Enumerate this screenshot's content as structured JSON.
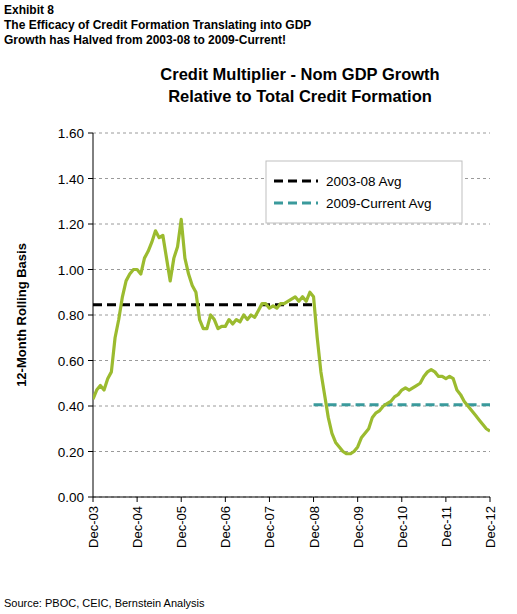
{
  "chart_data": {
    "type": "line",
    "exhibit": "Exhibit 8",
    "headline": [
      "The Efficacy of Credit Formation Translating into GDP",
      "Growth has Halved from 2003-08 to 2009-Current!"
    ],
    "title": [
      "Credit Multiplier - Nom GDP Growth",
      "Relative to Total Credit Formation"
    ],
    "y_label": "12-Month Rolling Basis",
    "source": "Source: PBOC, CEIC, Bernstein Analysis",
    "categories": [
      "Dec-03",
      null,
      null,
      null,
      null,
      null,
      null,
      null,
      null,
      null,
      null,
      null,
      "Dec-04",
      null,
      null,
      null,
      null,
      null,
      null,
      null,
      null,
      null,
      null,
      null,
      "Dec-05",
      null,
      null,
      null,
      null,
      null,
      null,
      null,
      null,
      null,
      null,
      null,
      "Dec-06",
      null,
      null,
      null,
      null,
      null,
      null,
      null,
      null,
      null,
      null,
      null,
      "Dec-07",
      null,
      null,
      null,
      null,
      null,
      null,
      null,
      null,
      null,
      null,
      null,
      "Dec-08",
      null,
      null,
      null,
      null,
      null,
      null,
      null,
      null,
      null,
      null,
      null,
      "Dec-09",
      null,
      null,
      null,
      null,
      null,
      null,
      null,
      null,
      null,
      null,
      null,
      "Dec-10",
      null,
      null,
      null,
      null,
      null,
      null,
      null,
      null,
      null,
      null,
      null,
      "Dec-11",
      null,
      null,
      null,
      null,
      null,
      null,
      null,
      null,
      null,
      null,
      null,
      "Dec-12"
    ],
    "series": [
      {
        "color": "#9bbb2f",
        "line_style": "solid",
        "values": [
          0.43,
          0.47,
          0.49,
          0.47,
          0.52,
          0.55,
          0.7,
          0.78,
          0.88,
          0.95,
          0.98,
          1.0,
          1.0,
          0.98,
          1.05,
          1.08,
          1.12,
          1.17,
          1.14,
          1.15,
          1.05,
          0.95,
          1.05,
          1.1,
          1.22,
          1.05,
          0.98,
          0.93,
          0.9,
          0.78,
          0.74,
          0.74,
          0.8,
          0.78,
          0.74,
          0.75,
          0.75,
          0.78,
          0.76,
          0.78,
          0.77,
          0.8,
          0.78,
          0.8,
          0.79,
          0.82,
          0.85,
          0.85,
          0.83,
          0.84,
          0.83,
          0.85,
          0.85,
          0.86,
          0.87,
          0.88,
          0.86,
          0.88,
          0.86,
          0.9,
          0.88,
          0.7,
          0.55,
          0.45,
          0.35,
          0.28,
          0.24,
          0.22,
          0.2,
          0.19,
          0.19,
          0.2,
          0.22,
          0.26,
          0.28,
          0.3,
          0.35,
          0.37,
          0.38,
          0.4,
          0.41,
          0.42,
          0.44,
          0.45,
          0.47,
          0.48,
          0.47,
          0.48,
          0.49,
          0.5,
          0.53,
          0.55,
          0.56,
          0.55,
          0.53,
          0.53,
          0.52,
          0.53,
          0.52,
          0.47,
          0.45,
          0.42,
          0.4,
          0.38,
          0.36,
          0.34,
          0.32,
          0.3,
          0.29
        ]
      },
      {
        "name": "2003-08 Avg",
        "color": "#000000",
        "line_style": "dashed",
        "values": [
          0.845,
          0.845,
          0.845,
          0.845,
          0.845,
          0.845,
          0.845,
          0.845,
          0.845,
          0.845,
          0.845,
          0.845,
          0.845,
          0.845,
          0.845,
          0.845,
          0.845,
          0.845,
          0.845,
          0.845,
          0.845,
          0.845,
          0.845,
          0.845,
          0.845,
          0.845,
          0.845,
          0.845,
          0.845,
          0.845,
          0.845,
          0.845,
          0.845,
          0.845,
          0.845,
          0.845,
          0.845,
          0.845,
          0.845,
          0.845,
          0.845,
          0.845,
          0.845,
          0.845,
          0.845,
          0.845,
          0.845,
          0.845,
          0.845,
          0.845,
          0.845,
          0.845,
          0.845,
          0.845,
          0.845,
          0.845,
          0.845,
          0.845,
          0.845,
          0.845,
          0.845,
          null,
          null,
          null,
          null,
          null,
          null,
          null,
          null,
          null,
          null,
          null,
          null,
          null,
          null,
          null,
          null,
          null,
          null,
          null,
          null,
          null,
          null,
          null,
          null,
          null,
          null,
          null,
          null,
          null,
          null,
          null,
          null,
          null,
          null,
          null,
          null,
          null,
          null,
          null,
          null,
          null,
          null,
          null,
          null,
          null,
          null,
          null,
          null
        ]
      },
      {
        "name": "2009-Current Avg",
        "color": "#3a9a9c",
        "line_style": "dashed",
        "values": [
          null,
          null,
          null,
          null,
          null,
          null,
          null,
          null,
          null,
          null,
          null,
          null,
          null,
          null,
          null,
          null,
          null,
          null,
          null,
          null,
          null,
          null,
          null,
          null,
          null,
          null,
          null,
          null,
          null,
          null,
          null,
          null,
          null,
          null,
          null,
          null,
          null,
          null,
          null,
          null,
          null,
          null,
          null,
          null,
          null,
          null,
          null,
          null,
          null,
          null,
          null,
          null,
          null,
          null,
          null,
          null,
          null,
          null,
          null,
          null,
          0.405,
          0.405,
          0.405,
          0.405,
          0.405,
          0.405,
          0.405,
          0.405,
          0.405,
          0.405,
          0.405,
          0.405,
          0.405,
          0.405,
          0.405,
          0.405,
          0.405,
          0.405,
          0.405,
          0.405,
          0.405,
          0.405,
          0.405,
          0.405,
          0.405,
          0.405,
          0.405,
          0.405,
          0.405,
          0.405,
          0.405,
          0.405,
          0.405,
          0.405,
          0.405,
          0.405,
          0.405,
          0.405,
          0.405,
          0.405,
          0.405,
          0.405,
          0.405,
          0.405,
          0.405,
          0.405,
          0.405,
          0.405,
          0.405
        ]
      }
    ],
    "ylim": [
      0,
      1.6
    ],
    "yticks": [
      {
        "value": 0,
        "label": "0.00"
      },
      {
        "value": 0.2,
        "label": "0.20"
      },
      {
        "value": 0.4,
        "label": "0.40"
      },
      {
        "value": 0.6,
        "label": "0.60"
      },
      {
        "value": 0.8,
        "label": "0.80"
      },
      {
        "value": 1.0,
        "label": "1.00"
      },
      {
        "value": 1.2,
        "label": "1.20"
      },
      {
        "value": 1.4,
        "label": "1.40"
      },
      {
        "value": 1.6,
        "label": "1.60"
      }
    ],
    "grid": true,
    "legend": "top-right"
  }
}
